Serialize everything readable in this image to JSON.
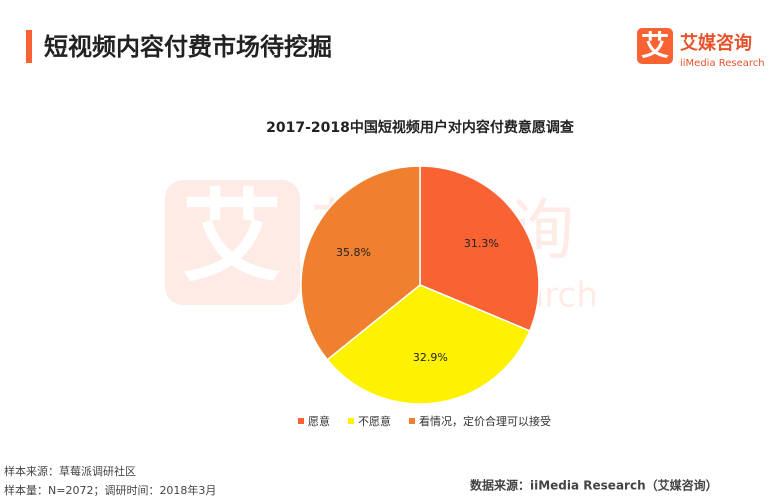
{
  "header": {
    "title": "短视频内容付费市场待挖掘"
  },
  "logo": {
    "icon": "艾",
    "name": "艾媒咨询",
    "sub": "iiMedia Research"
  },
  "chart_data": {
    "type": "pie",
    "title": "2017-2018中国短视频用户对内容付费意愿调查",
    "categories": [
      "愿意",
      "不愿意",
      "看情况，定价合理可以接受"
    ],
    "values": [
      31.3,
      32.9,
      35.8
    ],
    "value_labels": [
      "31.3%",
      "32.9%",
      "35.8%"
    ],
    "colors": [
      "#f96334",
      "#fff200",
      "#ee8030"
    ],
    "legend": "bottom"
  },
  "footer": {
    "sample_source": "样本来源：草莓派调研社区",
    "sample_size": "样本量：N=2072；调研时间：2018年3月",
    "data_source": "数据来源：iiMedia Research（艾媒咨询）"
  }
}
